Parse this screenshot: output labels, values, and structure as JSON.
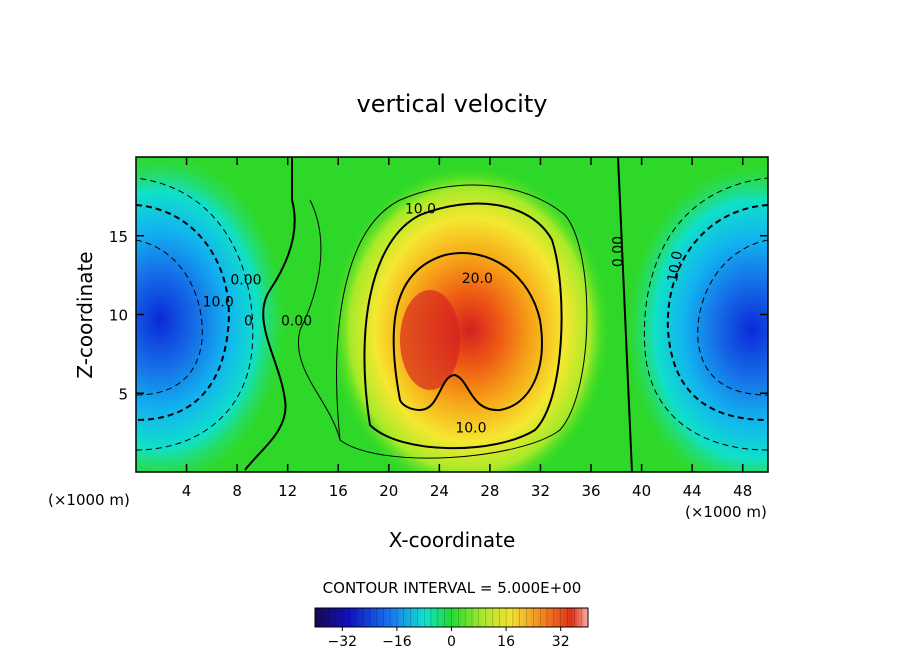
{
  "chart_data": {
    "type": "heatmap",
    "title": "vertical velocity",
    "xlabel": "X-coordinate",
    "ylabel": "Z-coordinate",
    "x_units_left": "(×1000 m)",
    "x_units_right": "(×1000 m)",
    "xlim": [
      0,
      50
    ],
    "ylim": [
      0,
      20
    ],
    "x_ticks": [
      4,
      8,
      12,
      16,
      20,
      24,
      28,
      32,
      36,
      40,
      44,
      48
    ],
    "y_ticks": [
      5,
      10,
      15
    ],
    "contour_interval_text": "CONTOUR INTERVAL = 5.000E+00",
    "colorbar": {
      "range": [
        -40,
        40
      ],
      "ticks": [
        -32,
        -16,
        0,
        16,
        32
      ]
    },
    "features": [
      {
        "kind": "max",
        "x": 23.5,
        "z": 9,
        "value": 32
      },
      {
        "kind": "min",
        "x": 1.5,
        "z": 10,
        "value": -30
      },
      {
        "kind": "min",
        "x": 49,
        "z": 9,
        "value": -30
      }
    ],
    "contour_labels": [
      {
        "text": "10.0",
        "x": 22.5,
        "z": 16.4
      },
      {
        "text": "20.0",
        "x": 27,
        "z": 12
      },
      {
        "text": "10.0",
        "x": 26.5,
        "z": 2.5
      },
      {
        "text": "0.00",
        "x": 38.5,
        "z": 14
      },
      {
        "text": "10.0",
        "x": 43,
        "z": 13
      },
      {
        "text": "0.00",
        "x": 8.7,
        "z": 11.9
      },
      {
        "text": "10.0",
        "x": 6.5,
        "z": 10.5
      },
      {
        "text": "0.00",
        "x": 12.7,
        "z": 9.3
      },
      {
        "text": "0",
        "x": 8.9,
        "z": 9.3
      }
    ]
  }
}
